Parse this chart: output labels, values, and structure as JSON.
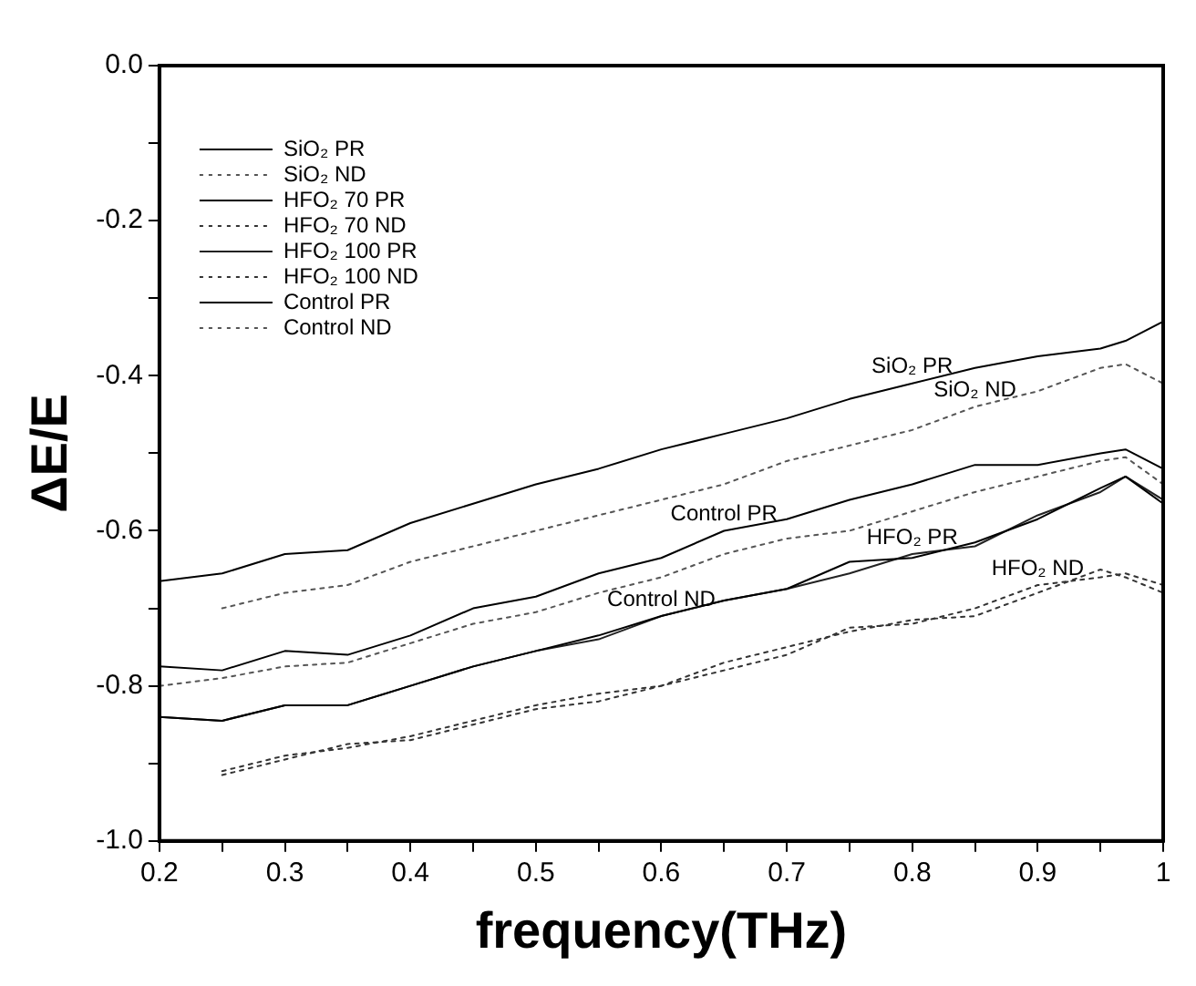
{
  "chart_data": {
    "type": "line",
    "xlabel": "frequency(THz)",
    "ylabel": "ΔE/E",
    "x": [
      0.2,
      0.25,
      0.3,
      0.35,
      0.4,
      0.45,
      0.5,
      0.55,
      0.6,
      0.65,
      0.7,
      0.75,
      0.8,
      0.85,
      0.9,
      0.95,
      0.97,
      1.0
    ],
    "series": [
      {
        "name": "SiO₂ PR",
        "color": "#000000",
        "line_style": "solid",
        "values": [
          -0.665,
          -0.655,
          -0.63,
          -0.625,
          -0.59,
          -0.565,
          -0.54,
          -0.52,
          -0.495,
          -0.475,
          -0.455,
          -0.43,
          -0.41,
          -0.39,
          -0.375,
          -0.365,
          -0.355,
          -0.33
        ]
      },
      {
        "name": "SiO₂ ND",
        "color": "#555555",
        "line_style": "dotted",
        "values": [
          null,
          -0.7,
          -0.68,
          -0.67,
          -0.64,
          -0.62,
          -0.6,
          -0.58,
          -0.56,
          -0.54,
          -0.51,
          -0.49,
          -0.47,
          -0.44,
          -0.42,
          -0.39,
          -0.385,
          -0.41
        ]
      },
      {
        "name": "HFO₂ 70 PR",
        "color": "#000000",
        "line_style": "solid",
        "values": [
          -0.84,
          -0.845,
          -0.825,
          -0.825,
          -0.8,
          -0.775,
          -0.755,
          -0.735,
          -0.71,
          -0.69,
          -0.675,
          -0.64,
          -0.635,
          -0.615,
          -0.585,
          -0.545,
          -0.53,
          -0.565
        ]
      },
      {
        "name": "HFO₂ 70 ND",
        "color": "#333333",
        "line_style": "dotted",
        "values": [
          null,
          -0.915,
          -0.895,
          -0.875,
          -0.87,
          -0.85,
          -0.83,
          -0.82,
          -0.8,
          -0.78,
          -0.76,
          -0.725,
          -0.72,
          -0.7,
          -0.67,
          -0.66,
          -0.655,
          -0.67
        ]
      },
      {
        "name": "HFO₂ 100 PR",
        "color": "#222222",
        "line_style": "solid",
        "values": [
          -0.84,
          -0.845,
          -0.825,
          -0.825,
          -0.8,
          -0.775,
          -0.755,
          -0.74,
          -0.71,
          -0.69,
          -0.675,
          -0.655,
          -0.63,
          -0.62,
          -0.58,
          -0.55,
          -0.53,
          -0.56
        ]
      },
      {
        "name": "HFO₂ 100 ND",
        "color": "#333333",
        "line_style": "dotted",
        "values": [
          null,
          -0.91,
          -0.89,
          -0.88,
          -0.865,
          -0.845,
          -0.825,
          -0.81,
          -0.8,
          -0.77,
          -0.75,
          -0.73,
          -0.715,
          -0.71,
          -0.68,
          -0.65,
          -0.66,
          -0.68
        ]
      },
      {
        "name": "Control PR",
        "color": "#000000",
        "line_style": "solid",
        "values": [
          -0.775,
          -0.78,
          -0.755,
          -0.76,
          -0.735,
          -0.7,
          -0.685,
          -0.655,
          -0.635,
          -0.6,
          -0.585,
          -0.56,
          -0.54,
          -0.515,
          -0.515,
          -0.5,
          -0.495,
          -0.52
        ]
      },
      {
        "name": "Control ND",
        "color": "#555555",
        "line_style": "dotted",
        "values": [
          -0.8,
          -0.79,
          -0.775,
          -0.77,
          -0.745,
          -0.72,
          -0.705,
          -0.68,
          -0.66,
          -0.63,
          -0.61,
          -0.6,
          -0.575,
          -0.55,
          -0.53,
          -0.51,
          -0.505,
          -0.54
        ]
      }
    ],
    "xlim": [
      0.2,
      1.0
    ],
    "xticks": [
      0.2,
      {
        "value": 0.25,
        "label": null
      },
      0.3,
      {
        "value": 0.35,
        "label": null
      },
      0.4,
      {
        "value": 0.45,
        "label": null
      },
      0.5,
      {
        "value": 0.55,
        "label": null
      },
      0.6,
      {
        "value": 0.65,
        "label": null
      },
      0.7,
      {
        "value": 0.75,
        "label": null
      },
      0.8,
      {
        "value": 0.85,
        "label": null
      },
      0.9,
      {
        "value": 0.95,
        "label": null
      },
      1.0
    ],
    "ylim": [
      -1.0,
      0.0
    ],
    "yticks": [
      {
        "value": -1.0,
        "label": "-1.0"
      },
      {
        "value": -0.9,
        "label": null
      },
      -0.8,
      {
        "value": -0.7,
        "label": null
      },
      -0.6,
      {
        "value": -0.5,
        "label": null
      },
      -0.4,
      {
        "value": -0.3,
        "label": null
      },
      -0.2,
      {
        "value": -0.1,
        "label": null
      },
      {
        "value": 0.0,
        "label": "0.0"
      }
    ],
    "grid": false,
    "legend": "top left",
    "marker": "none",
    "annotations": [
      {
        "text": "SiO₂ PR",
        "x": 0.8,
        "y": -0.41
      },
      {
        "text": "SiO₂ ND",
        "x": 0.85,
        "y": -0.44
      },
      {
        "text": "Control PR",
        "x": 0.65,
        "y": -0.6
      },
      {
        "text": "Control ND",
        "x": 0.6,
        "y": -0.71
      },
      {
        "text": "HFO₂ PR",
        "x": 0.8,
        "y": -0.63
      },
      {
        "text": "HFO₂ ND",
        "x": 0.9,
        "y": -0.67
      }
    ]
  }
}
